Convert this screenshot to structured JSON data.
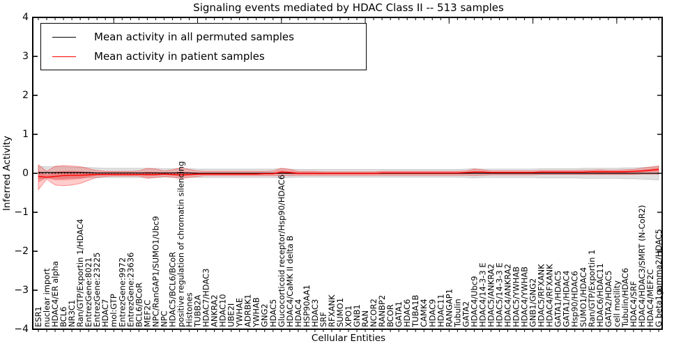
{
  "title": "Signaling events mediated by HDAC Class II -- 513 samples",
  "legend": {
    "items": [
      {
        "label": "Mean activity in all permuted samples",
        "color": "#000000"
      },
      {
        "label": "Mean activity in patient samples",
        "color": "#ff0000"
      }
    ]
  },
  "axes": {
    "xlabel": "Cellular Entities",
    "ylabel": "Inferred Activity",
    "ytick_labels": [
      "4",
      "3",
      "2",
      "1",
      "0",
      "−1",
      "−2",
      "−3",
      "−4"
    ],
    "ytick_values": [
      4,
      3,
      2,
      1,
      0,
      -1,
      -2,
      -3,
      -4
    ]
  },
  "colors": {
    "frame": "#000000",
    "permuted_line": "#000000",
    "patient_line": "#ff0000",
    "permuted_band_fill": "rgba(0,0,0,0.12)",
    "permuted_band_edge": "rgba(0,0,0,0.18)",
    "patient_band_fill": "rgba(255,0,0,0.20)",
    "patient_band_inner_fill": "rgba(255,0,0,0.28)",
    "patient_band_edge": "rgba(255,0,0,0.45)",
    "zero_line": "#000000",
    "background": "#ffffff"
  },
  "chart_data": {
    "type": "line",
    "title": "Signaling events mediated by HDAC Class II -- 513 samples",
    "xlabel": "Cellular Entities",
    "ylabel": "Inferred Activity",
    "ylim": [
      -4,
      4
    ],
    "grid": false,
    "legend_position": "upper left",
    "zero_reference_line": true,
    "categories": [
      "ESR1",
      "nuclear import",
      "HDAC4/ER alpha",
      "BCL6",
      "NR3C1",
      "Ran/GTP/Exportin 1/HDAC4",
      "EntrezGene:8021",
      "EntrezGene:23225",
      "HDAC7",
      "mol:GTP",
      "EntrezGene:9972",
      "EntrezGene:23636",
      "BCL6/BCoR",
      "MEF2C",
      "NPC/RanGAP1/SUMO1/Ubc9",
      "NPC",
      "HDAC5/BCL6/BCoR",
      "positive regulation of chromatin silencing",
      "Histones",
      "TUBB2A",
      "HDAC7/HDAC3",
      "ANKRA2",
      "HDAC10",
      "UBE2I",
      "YWHAE",
      "ADRBK1",
      "YWHAB",
      "GNG2",
      "HDAC5",
      "Glucocorticoid receptor/Hsp90/HDAC6",
      "HDAC4/CaMK II delta B",
      "HDAC4",
      "HSP90AA1",
      "HDAC3",
      "SRF",
      "RFXANK",
      "SUMO1",
      "XPO1",
      "GNB1",
      "RAN",
      "NCOR2",
      "RANBP2",
      "BCOR",
      "GATA1",
      "HDAC6",
      "TUBA1B",
      "CAMK4",
      "HDAC9",
      "HDAC11",
      "RANGAP1",
      "Tubulin",
      "GATA2",
      "HDAC4/Ubc9",
      "HDAC4/14-3-3 E",
      "HDAC5/ANKRA2",
      "HDAC5/14-3-3 E",
      "HDAC4/ANKRA2",
      "HDAC5/YWHAB",
      "HDAC4/YWHAB",
      "GNB1/GNG2",
      "HDAC5/RFXANK",
      "HDAC4/RFXANK",
      "GATA1/HDAC5",
      "GATA1/HDAC4",
      "Hsp90/HDAC6",
      "SUMO1/HDAC4",
      "Ran/GTP/Exportin 1",
      "HDAC6/HDAC11",
      "GATA2/HDAC5",
      "cell motility",
      "Tubulin/HDAC6",
      "HDAC4/SRF",
      "HDAC4/HDAC3/SMRT (N-CoR2)",
      "HDAC4/MEF2C",
      "G beta1gamma2/HDAC5"
    ],
    "series": [
      {
        "name": "Mean activity in all permuted samples",
        "color": "#000000",
        "values": [
          0.02,
          0.02,
          0.02,
          0.02,
          0.02,
          0.02,
          0.02,
          0.01,
          0.01,
          0.01,
          0.01,
          0.01,
          0.01,
          0.01,
          0.01,
          0.01,
          0.01,
          0.01,
          0.01,
          0.0,
          0.0,
          0.0,
          0.0,
          0.0,
          0.0,
          0.0,
          0.0,
          0.0,
          0.0,
          0.0,
          0.0,
          0.0,
          0.0,
          0.0,
          0.0,
          0.0,
          0.0,
          0.0,
          0.0,
          0.0,
          0.0,
          0.0,
          0.0,
          0.0,
          0.0,
          0.0,
          0.0,
          0.0,
          0.0,
          0.0,
          0.0,
          0.0,
          0.0,
          0.0,
          0.0,
          0.0,
          0.0,
          0.0,
          0.0,
          0.0,
          0.0,
          0.0,
          0.0,
          0.0,
          0.0,
          0.0,
          0.0,
          0.0,
          0.0,
          0.0,
          0.0,
          0.0,
          0.0,
          0.0,
          0.0
        ]
      },
      {
        "name": "Mean activity in patient samples",
        "color": "#ff0000",
        "values": [
          -0.08,
          -0.1,
          -0.08,
          -0.06,
          -0.05,
          -0.05,
          -0.04,
          -0.03,
          -0.03,
          -0.03,
          -0.03,
          -0.03,
          -0.03,
          -0.03,
          -0.03,
          -0.02,
          -0.03,
          -0.04,
          -0.03,
          -0.02,
          -0.02,
          -0.02,
          -0.02,
          -0.02,
          -0.02,
          -0.02,
          -0.02,
          -0.01,
          -0.01,
          0.03,
          0.02,
          0.0,
          0.0,
          0.0,
          0.0,
          0.0,
          0.0,
          0.0,
          0.0,
          0.0,
          0.0,
          0.01,
          0.01,
          0.01,
          0.01,
          0.01,
          0.01,
          0.01,
          0.01,
          0.01,
          0.01,
          0.02,
          0.03,
          0.03,
          0.02,
          0.02,
          0.02,
          0.02,
          0.02,
          0.02,
          0.03,
          0.03,
          0.03,
          0.03,
          0.03,
          0.03,
          0.04,
          0.04,
          0.04,
          0.04,
          0.04,
          0.05,
          0.06,
          0.08,
          0.1
        ]
      }
    ],
    "bands": [
      {
        "name": "patient-sample-range",
        "upper": [
          0.22,
          0.05,
          0.18,
          0.2,
          0.19,
          0.17,
          0.12,
          0.07,
          0.05,
          0.05,
          0.05,
          0.05,
          0.06,
          0.13,
          0.11,
          0.06,
          0.09,
          0.14,
          0.1,
          0.06,
          0.05,
          0.05,
          0.05,
          0.05,
          0.05,
          0.05,
          0.05,
          0.05,
          0.06,
          0.13,
          0.1,
          0.05,
          0.05,
          0.05,
          0.04,
          0.04,
          0.04,
          0.04,
          0.04,
          0.04,
          0.04,
          0.05,
          0.05,
          0.05,
          0.05,
          0.05,
          0.05,
          0.05,
          0.05,
          0.05,
          0.05,
          0.06,
          0.11,
          0.09,
          0.06,
          0.06,
          0.06,
          0.06,
          0.06,
          0.06,
          0.07,
          0.07,
          0.07,
          0.07,
          0.07,
          0.08,
          0.08,
          0.09,
          0.08,
          0.08,
          0.09,
          0.1,
          0.13,
          0.16,
          0.19
        ],
        "lower": [
          -0.42,
          -0.15,
          -0.3,
          -0.32,
          -0.3,
          -0.26,
          -0.18,
          -0.1,
          -0.08,
          -0.07,
          -0.07,
          -0.07,
          -0.07,
          -0.13,
          -0.11,
          -0.08,
          -0.1,
          -0.14,
          -0.11,
          -0.08,
          -0.06,
          -0.06,
          -0.06,
          -0.06,
          -0.06,
          -0.06,
          -0.06,
          -0.06,
          -0.06,
          -0.06,
          -0.06,
          -0.05,
          -0.05,
          -0.05,
          -0.05,
          -0.05,
          -0.05,
          -0.05,
          -0.05,
          -0.05,
          -0.05,
          -0.05,
          -0.05,
          -0.05,
          -0.05,
          -0.05,
          -0.05,
          -0.05,
          -0.05,
          -0.05,
          -0.05,
          -0.05,
          -0.06,
          -0.05,
          -0.04,
          -0.04,
          -0.04,
          -0.04,
          -0.04,
          -0.04,
          -0.03,
          -0.03,
          -0.03,
          -0.03,
          -0.03,
          -0.03,
          -0.03,
          -0.03,
          -0.03,
          -0.03,
          -0.03,
          -0.03,
          -0.02,
          -0.02,
          -0.02
        ]
      },
      {
        "name": "permuted-sample-range",
        "halfwidth": [
          0.16,
          0.15,
          0.15,
          0.15,
          0.14,
          0.14,
          0.13,
          0.13,
          0.12,
          0.12,
          0.12,
          0.12,
          0.12,
          0.12,
          0.12,
          0.11,
          0.11,
          0.12,
          0.11,
          0.11,
          0.11,
          0.11,
          0.11,
          0.11,
          0.11,
          0.11,
          0.11,
          0.11,
          0.11,
          0.12,
          0.11,
          0.1,
          0.1,
          0.1,
          0.1,
          0.1,
          0.1,
          0.1,
          0.1,
          0.1,
          0.1,
          0.1,
          0.1,
          0.1,
          0.1,
          0.1,
          0.1,
          0.1,
          0.1,
          0.1,
          0.1,
          0.11,
          0.12,
          0.11,
          0.11,
          0.11,
          0.11,
          0.11,
          0.11,
          0.11,
          0.12,
          0.12,
          0.12,
          0.12,
          0.12,
          0.13,
          0.13,
          0.13,
          0.13,
          0.13,
          0.14,
          0.14,
          0.15,
          0.16,
          0.17
        ]
      }
    ]
  }
}
